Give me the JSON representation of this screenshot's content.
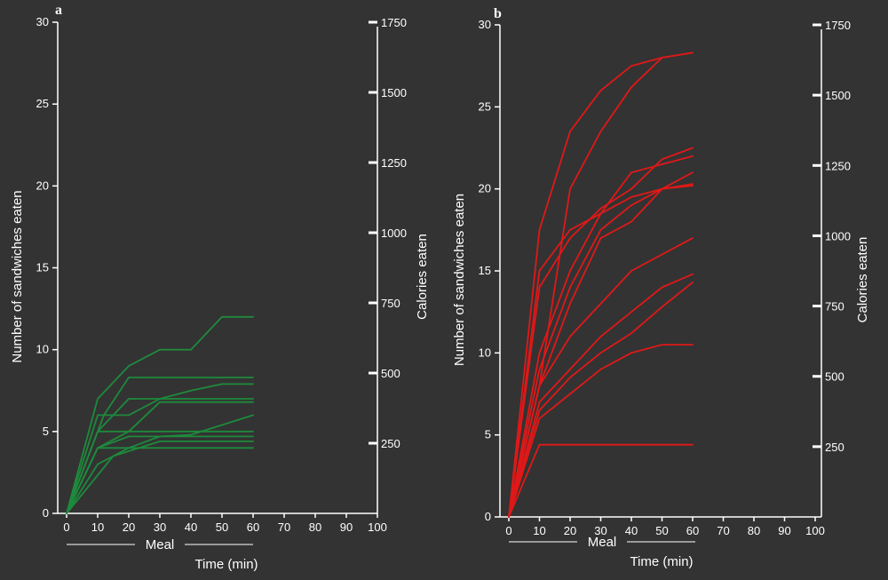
{
  "colors": {
    "background": "#333333",
    "axes": "#ffffff",
    "panel_a_lines": "#1e8a3c",
    "panel_b_lines": "#e01818"
  },
  "chart_data": [
    {
      "panel": "a",
      "type": "line",
      "xlabel": "Time (min)",
      "bracket_label": "Meal",
      "ylabel_left": "Number of sandwiches eaten",
      "ylabel_right": "Calories eaten",
      "xlim": [
        0,
        100
      ],
      "ylim": [
        0,
        30
      ],
      "right_ylim": [
        0,
        1750
      ],
      "x_ticks": [
        "0",
        "10",
        "20",
        "30",
        "40",
        "50",
        "60",
        "70",
        "80",
        "90",
        "100"
      ],
      "y_ticks": [
        "0",
        "5",
        "10",
        "15",
        "20",
        "25",
        "30"
      ],
      "right_ticks": [
        "250",
        "500",
        "750",
        "1000",
        "1250",
        "1500",
        "1750"
      ],
      "line_color": "#1e8a3c",
      "series": [
        {
          "x": [
            0,
            10,
            20,
            30,
            40,
            50,
            60
          ],
          "y": [
            0,
            7,
            9,
            10,
            10,
            12,
            12
          ]
        },
        {
          "x": [
            0,
            12,
            20,
            60
          ],
          "y": [
            0,
            6,
            8.3,
            8.3
          ]
        },
        {
          "x": [
            0,
            10,
            20,
            30,
            40,
            50,
            60
          ],
          "y": [
            0,
            6,
            6,
            7,
            7.5,
            7.9,
            7.9
          ]
        },
        {
          "x": [
            0,
            10,
            20,
            60
          ],
          "y": [
            0,
            5,
            7,
            7
          ]
        },
        {
          "x": [
            0,
            10,
            20,
            30,
            60
          ],
          "y": [
            0,
            4,
            5,
            6.8,
            6.8
          ]
        },
        {
          "x": [
            0,
            10,
            60
          ],
          "y": [
            0,
            5,
            5
          ]
        },
        {
          "x": [
            0,
            10,
            20,
            60
          ],
          "y": [
            0,
            4,
            4.7,
            4.7
          ]
        },
        {
          "x": [
            0,
            15,
            30,
            60
          ],
          "y": [
            0,
            3.5,
            4.4,
            4.4
          ]
        },
        {
          "x": [
            0,
            10,
            60
          ],
          "y": [
            0,
            4,
            4
          ]
        },
        {
          "x": [
            0,
            10,
            20,
            30,
            40,
            50,
            60
          ],
          "y": [
            0,
            3,
            4,
            4.7,
            4.8,
            5.4,
            6
          ]
        }
      ]
    },
    {
      "panel": "b",
      "type": "line",
      "xlabel": "Time (min)",
      "bracket_label": "Meal",
      "ylabel_left": "Number of sandwiches eaten",
      "ylabel_right": "Calories eaten",
      "xlim": [
        0,
        100
      ],
      "ylim": [
        0,
        30
      ],
      "right_ylim": [
        0,
        1750
      ],
      "x_ticks": [
        "0",
        "10",
        "20",
        "30",
        "40",
        "50",
        "60",
        "70",
        "80",
        "90",
        "100"
      ],
      "y_ticks": [
        "0",
        "5",
        "10",
        "15",
        "20",
        "25",
        "30"
      ],
      "right_ticks": [
        "250",
        "500",
        "750",
        "1000",
        "1250",
        "1500",
        "1750"
      ],
      "line_color": "#e01818",
      "series": [
        {
          "x": [
            0,
            10,
            20,
            30,
            40,
            50,
            60
          ],
          "y": [
            0,
            17.5,
            23.5,
            26,
            27.5,
            28,
            28.3
          ]
        },
        {
          "x": [
            0,
            10,
            20,
            30,
            40,
            50,
            60
          ],
          "y": [
            0,
            8,
            20,
            23.5,
            26.2,
            28,
            28.3
          ]
        },
        {
          "x": [
            0,
            10,
            20,
            30,
            40,
            50,
            60
          ],
          "y": [
            0,
            15,
            17.5,
            18.5,
            19.5,
            20,
            20.2
          ]
        },
        {
          "x": [
            0,
            10,
            20,
            30,
            40,
            50,
            60
          ],
          "y": [
            0,
            14,
            17,
            18.8,
            20,
            21.8,
            22.5
          ]
        },
        {
          "x": [
            0,
            10,
            20,
            30,
            40,
            50,
            60
          ],
          "y": [
            0,
            10,
            15,
            18.5,
            21,
            21.5,
            22
          ]
        },
        {
          "x": [
            0,
            10,
            20,
            30,
            40,
            50,
            60
          ],
          "y": [
            0,
            9,
            14,
            17.5,
            19,
            20,
            21
          ]
        },
        {
          "x": [
            0,
            10,
            20,
            30,
            40,
            50,
            60
          ],
          "y": [
            0,
            8,
            13,
            17,
            18,
            20,
            20.3
          ]
        },
        {
          "x": [
            0,
            10,
            20,
            30,
            40,
            50,
            60
          ],
          "y": [
            0,
            8,
            11,
            13,
            15,
            16,
            17
          ]
        },
        {
          "x": [
            0,
            10,
            20,
            30,
            40,
            50,
            60
          ],
          "y": [
            0,
            7,
            9,
            11,
            12.5,
            14,
            14.8
          ]
        },
        {
          "x": [
            0,
            10,
            20,
            30,
            40,
            50,
            60
          ],
          "y": [
            0,
            6.5,
            8.5,
            10,
            11.2,
            12.8,
            14.3
          ]
        },
        {
          "x": [
            0,
            10,
            20,
            30,
            40,
            50,
            60
          ],
          "y": [
            0,
            6,
            7.5,
            9,
            10,
            10.5,
            10.5
          ]
        },
        {
          "x": [
            0,
            10,
            20,
            60
          ],
          "y": [
            0,
            4.4,
            4.4,
            4.4
          ]
        }
      ]
    }
  ]
}
